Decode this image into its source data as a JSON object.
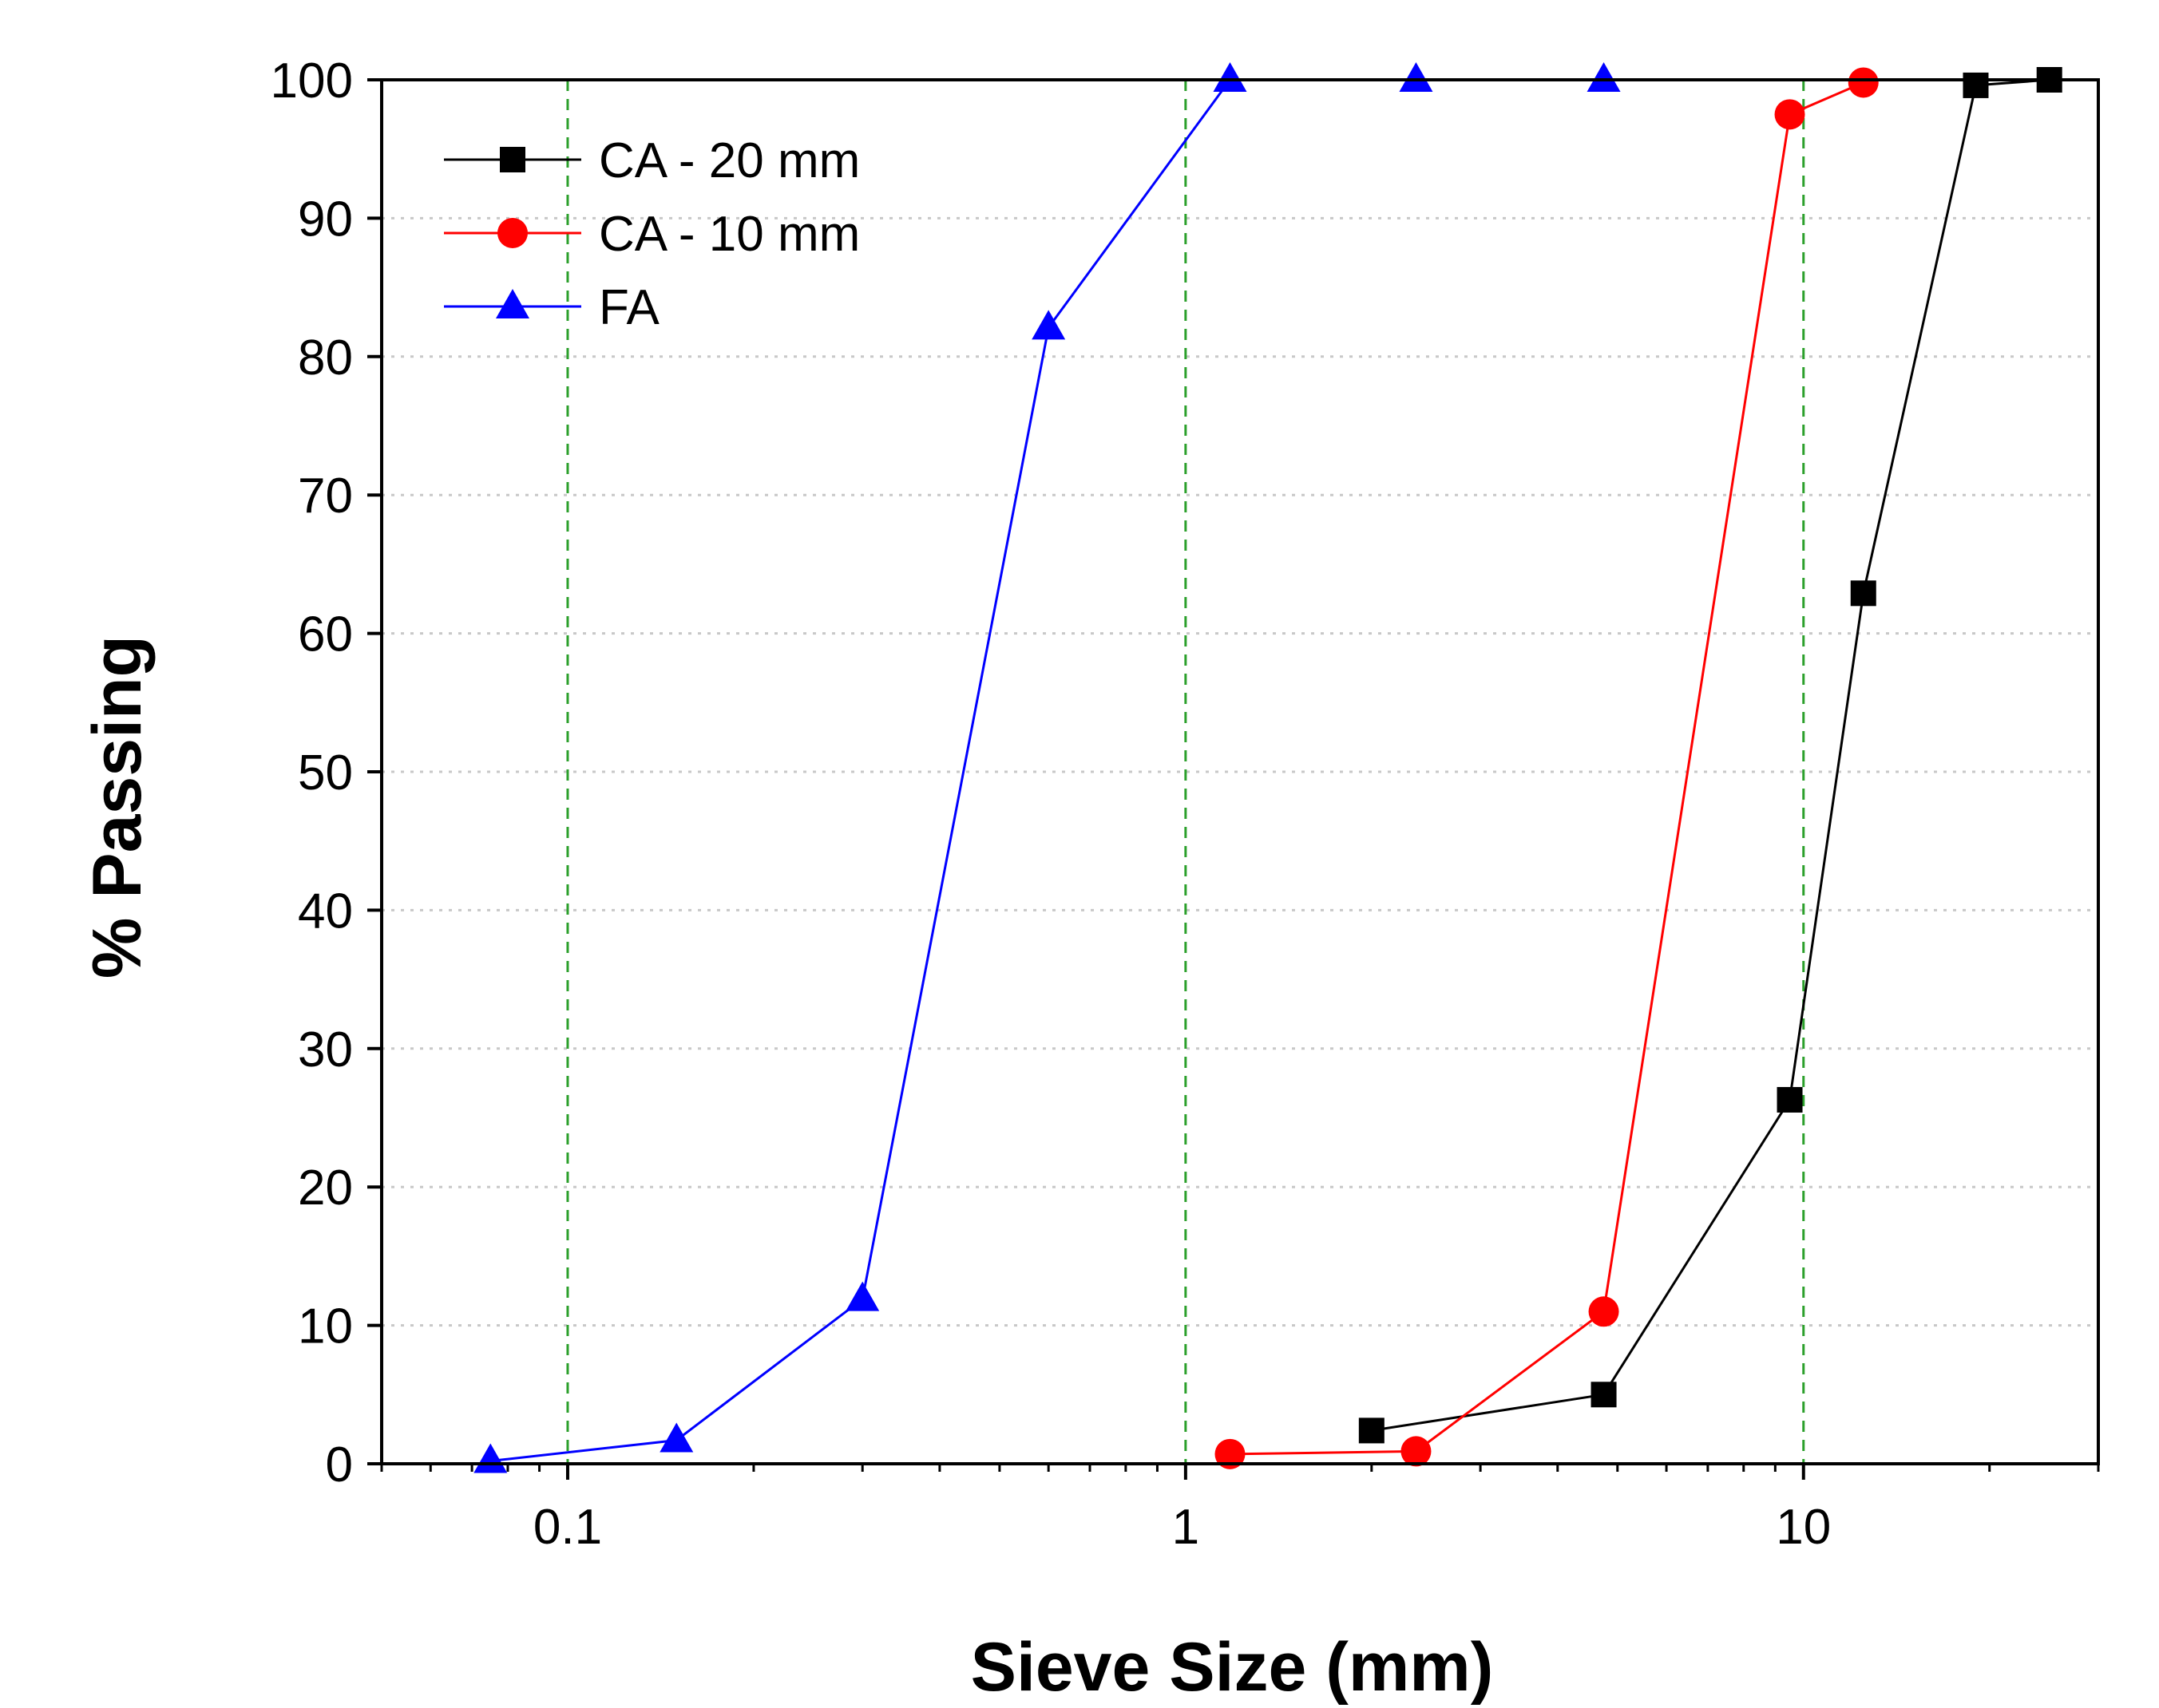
{
  "chart_data": {
    "type": "line",
    "title": "",
    "xlabel": "Sieve Size (mm)",
    "ylabel": "% Passing",
    "xscale": "log",
    "xlim": [
      0.05,
      30
    ],
    "ylim": [
      0,
      100
    ],
    "x_ticks": [
      0.1,
      1,
      10
    ],
    "x_tick_labels": [
      "0.1",
      "1",
      "10"
    ],
    "y_ticks": [
      0,
      10,
      20,
      30,
      40,
      50,
      60,
      70,
      80,
      90,
      100
    ],
    "y_tick_labels": [
      "0",
      "10",
      "20",
      "30",
      "40",
      "50",
      "60",
      "70",
      "80",
      "90",
      "100"
    ],
    "grid": {
      "horizontal": "dotted gray",
      "vertical": "dashed green at decades"
    },
    "legend_position": "top-left",
    "series": [
      {
        "name": "CA - 20 mm",
        "color": "#000000",
        "marker": "square",
        "x": [
          2.0,
          4.75,
          9.5,
          12.5,
          19.0,
          25.0
        ],
        "y": [
          2.4,
          5.0,
          26.3,
          62.9,
          99.6,
          100.0
        ]
      },
      {
        "name": "CA - 10 mm",
        "color": "#ff0000",
        "marker": "circle",
        "x": [
          1.18,
          2.36,
          4.75,
          9.5,
          12.5
        ],
        "y": [
          0.7,
          0.9,
          11.0,
          97.5,
          99.8
        ]
      },
      {
        "name": "FA",
        "color": "#0000ff",
        "marker": "triangle",
        "x": [
          0.075,
          0.15,
          0.3,
          0.6,
          1.18,
          2.36,
          4.75
        ],
        "y": [
          0.2,
          1.7,
          11.9,
          82.1,
          100.0,
          100.0,
          100.0
        ]
      }
    ]
  }
}
